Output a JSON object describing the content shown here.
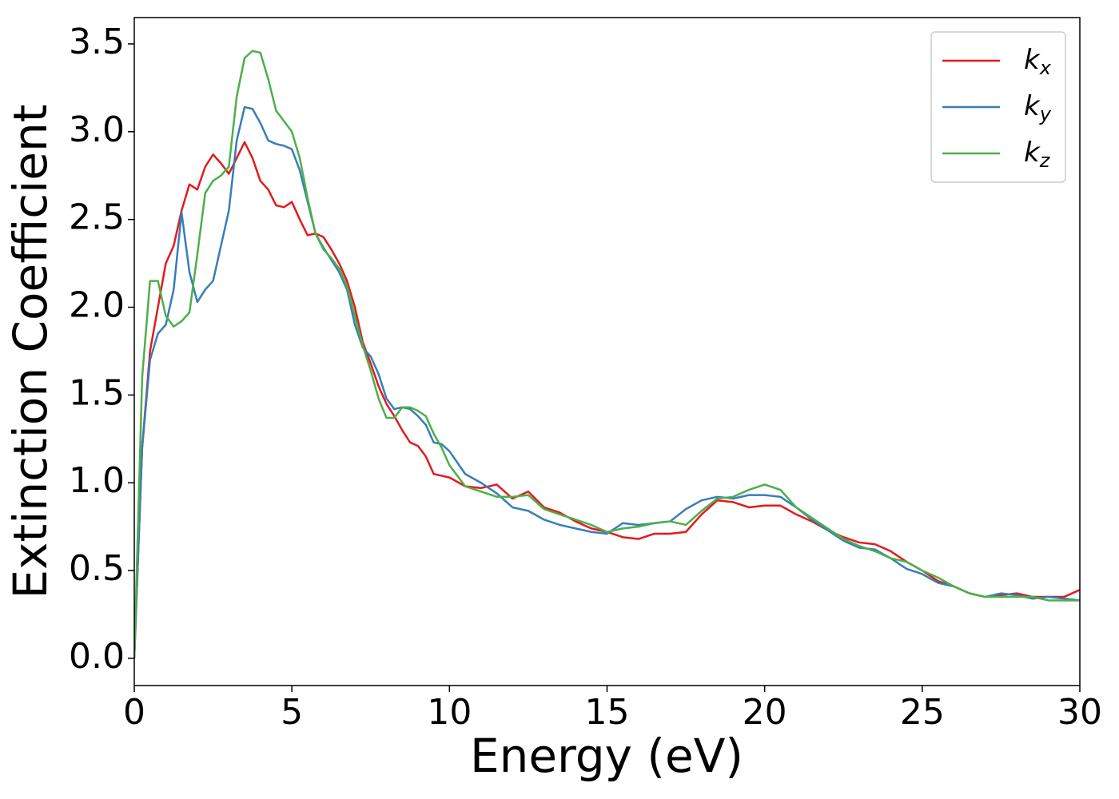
{
  "chart_data": {
    "type": "line",
    "xlabel": "Energy (eV)",
    "ylabel": "Extinction Coefficient",
    "xlim": [
      0,
      30
    ],
    "ylim": [
      -0.155,
      3.65
    ],
    "xticks": [
      0,
      5,
      10,
      15,
      20,
      25,
      30
    ],
    "yticks": [
      {
        "value": 0,
        "label": "0.0"
      },
      0.5,
      {
        "value": 1,
        "label": "1.0"
      },
      1.5,
      {
        "value": 2,
        "label": "2.0"
      },
      2.5,
      {
        "value": 3,
        "label": "3.0"
      },
      3.5
    ],
    "legend": "upper right",
    "x": [
      0,
      0.25,
      0.5,
      0.75,
      1,
      1.25,
      1.5,
      1.75,
      2,
      2.25,
      2.5,
      2.75,
      3,
      3.25,
      3.5,
      3.75,
      4,
      4.25,
      4.5,
      4.75,
      5,
      5.25,
      5.5,
      5.75,
      6,
      6.25,
      6.5,
      6.75,
      7,
      7.25,
      7.5,
      7.75,
      8,
      8.25,
      8.5,
      8.75,
      9,
      9.25,
      9.5,
      9.75,
      10,
      10.5,
      11,
      11.5,
      12,
      12.5,
      13,
      13.5,
      14,
      14.5,
      15,
      15.5,
      16,
      16.5,
      17,
      17.5,
      18,
      18.5,
      19,
      19.5,
      20,
      20.5,
      21,
      21.5,
      22,
      22.5,
      23,
      23.5,
      24,
      24.5,
      25,
      25.5,
      26,
      26.5,
      27,
      27.5,
      28,
      28.5,
      29,
      29.5,
      30
    ],
    "series": [
      {
        "name": "kx",
        "color": "#e41a1c",
        "values": [
          0.0,
          1.2,
          1.75,
          2.0,
          2.25,
          2.35,
          2.55,
          2.7,
          2.67,
          2.8,
          2.87,
          2.82,
          2.76,
          2.85,
          2.94,
          2.85,
          2.72,
          2.67,
          2.58,
          2.57,
          2.6,
          2.5,
          2.41,
          2.42,
          2.4,
          2.33,
          2.25,
          2.15,
          2.0,
          1.8,
          1.68,
          1.55,
          1.45,
          1.38,
          1.3,
          1.23,
          1.21,
          1.15,
          1.05,
          1.04,
          1.03,
          0.98,
          0.97,
          0.99,
          0.91,
          0.95,
          0.86,
          0.83,
          0.78,
          0.74,
          0.72,
          0.69,
          0.68,
          0.71,
          0.71,
          0.72,
          0.82,
          0.9,
          0.89,
          0.86,
          0.87,
          0.87,
          0.82,
          0.78,
          0.73,
          0.69,
          0.66,
          0.65,
          0.61,
          0.55,
          0.5,
          0.44,
          0.41,
          0.37,
          0.35,
          0.36,
          0.37,
          0.35,
          0.35,
          0.35,
          0.39
        ]
      },
      {
        "name": "ky",
        "color": "#377eb8",
        "values": [
          0.0,
          1.2,
          1.7,
          1.85,
          1.9,
          2.1,
          2.54,
          2.2,
          2.03,
          2.1,
          2.15,
          2.35,
          2.55,
          2.95,
          3.14,
          3.13,
          3.05,
          2.95,
          2.93,
          2.92,
          2.9,
          2.78,
          2.6,
          2.42,
          2.34,
          2.27,
          2.2,
          2.1,
          1.9,
          1.77,
          1.72,
          1.62,
          1.48,
          1.42,
          1.43,
          1.42,
          1.38,
          1.33,
          1.23,
          1.22,
          1.18,
          1.05,
          1.0,
          0.94,
          0.86,
          0.84,
          0.79,
          0.76,
          0.74,
          0.72,
          0.71,
          0.77,
          0.76,
          0.77,
          0.78,
          0.85,
          0.9,
          0.92,
          0.91,
          0.93,
          0.93,
          0.92,
          0.86,
          0.79,
          0.73,
          0.67,
          0.63,
          0.62,
          0.57,
          0.51,
          0.48,
          0.43,
          0.41,
          0.37,
          0.35,
          0.37,
          0.36,
          0.34,
          0.35,
          0.34,
          0.33
        ]
      },
      {
        "name": "kz",
        "color": "#4daf4a",
        "values": [
          0.0,
          1.6,
          2.15,
          2.15,
          1.95,
          1.89,
          1.92,
          1.97,
          2.3,
          2.65,
          2.72,
          2.75,
          2.8,
          3.2,
          3.42,
          3.46,
          3.45,
          3.3,
          3.12,
          3.06,
          3.0,
          2.85,
          2.62,
          2.42,
          2.33,
          2.28,
          2.22,
          2.12,
          1.95,
          1.78,
          1.64,
          1.48,
          1.37,
          1.37,
          1.43,
          1.43,
          1.41,
          1.38,
          1.28,
          1.2,
          1.1,
          0.98,
          0.95,
          0.92,
          0.92,
          0.93,
          0.85,
          0.82,
          0.79,
          0.76,
          0.72,
          0.74,
          0.75,
          0.77,
          0.78,
          0.76,
          0.84,
          0.91,
          0.92,
          0.96,
          0.99,
          0.96,
          0.86,
          0.8,
          0.74,
          0.68,
          0.64,
          0.61,
          0.57,
          0.55,
          0.5,
          0.46,
          0.41,
          0.37,
          0.35,
          0.35,
          0.35,
          0.35,
          0.33,
          0.33,
          0.33
        ]
      }
    ]
  }
}
